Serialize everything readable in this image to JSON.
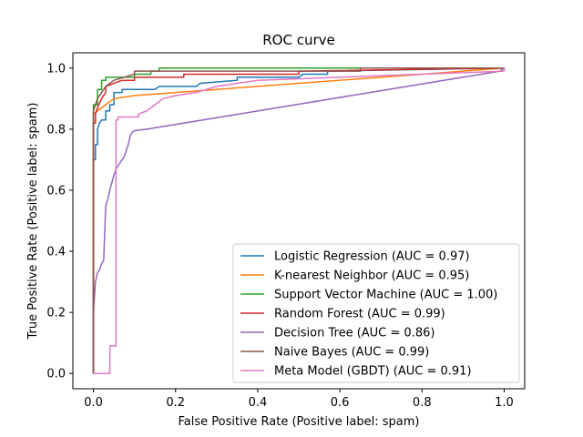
{
  "chart_data": {
    "type": "line",
    "title": "ROC curve",
    "xlabel": "False Positive Rate (Positive label: spam)",
    "ylabel": "True Positive Rate (Positive label: spam)",
    "xlim": [
      -0.05,
      1.05
    ],
    "ylim": [
      -0.05,
      1.05
    ],
    "xticks": [
      0.0,
      0.2,
      0.4,
      0.6,
      0.8,
      1.0
    ],
    "yticks": [
      0.0,
      0.2,
      0.4,
      0.6,
      0.8,
      1.0
    ],
    "tick_labels": [
      "0.0",
      "0.2",
      "0.4",
      "0.6",
      "0.8",
      "1.0"
    ],
    "grid": false,
    "legend_position": "lower-right",
    "series": [
      {
        "name": "Logistic Regression (AUC = 0.97)",
        "color": "#1f77b4",
        "x": [
          0.0,
          0.0,
          0.005,
          0.005,
          0.01,
          0.01,
          0.015,
          0.02,
          0.03,
          0.03,
          0.04,
          0.04,
          0.05,
          0.05,
          0.07,
          0.07,
          0.1,
          0.15,
          0.16,
          0.16,
          0.25,
          0.26,
          0.26,
          0.35,
          0.35,
          0.5,
          0.51,
          0.57,
          0.57,
          1.0
        ],
        "y": [
          0.0,
          0.7,
          0.7,
          0.75,
          0.75,
          0.8,
          0.82,
          0.83,
          0.83,
          0.86,
          0.86,
          0.88,
          0.88,
          0.92,
          0.92,
          0.93,
          0.93,
          0.93,
          0.94,
          0.94,
          0.94,
          0.95,
          0.95,
          0.96,
          0.97,
          0.97,
          0.98,
          0.98,
          0.99,
          1.0
        ]
      },
      {
        "name": "K-nearest Neighbor (AUC = 0.95)",
        "color": "#ff7f0e",
        "x": [
          0.0,
          0.0,
          0.01,
          0.02,
          0.03,
          0.05,
          0.1,
          1.0
        ],
        "y": [
          0.0,
          0.85,
          0.86,
          0.87,
          0.88,
          0.9,
          0.91,
          1.0
        ]
      },
      {
        "name": "Support Vector Machine (AUC = 1.00)",
        "color": "#2ca02c",
        "x": [
          0.0,
          0.0,
          0.01,
          0.01,
          0.02,
          0.02,
          0.03,
          0.03,
          0.05,
          0.05,
          0.1,
          0.1,
          0.14,
          0.14,
          0.16,
          0.16,
          0.66,
          1.0
        ],
        "y": [
          0.0,
          0.88,
          0.88,
          0.93,
          0.93,
          0.96,
          0.96,
          0.97,
          0.97,
          0.97,
          0.97,
          0.98,
          0.98,
          0.99,
          0.99,
          1.0,
          1.0,
          1.0
        ]
      },
      {
        "name": "Random Forest (AUC = 0.99)",
        "color": "#d62728",
        "x": [
          0.0,
          0.0,
          0.005,
          0.005,
          0.01,
          0.02,
          0.03,
          0.03,
          0.05,
          0.07,
          0.1,
          0.1,
          0.22,
          0.22,
          0.5,
          0.5,
          1.0
        ],
        "y": [
          0.0,
          0.82,
          0.82,
          0.85,
          0.87,
          0.9,
          0.92,
          0.94,
          0.95,
          0.96,
          0.96,
          0.97,
          0.97,
          0.98,
          0.98,
          0.99,
          1.0
        ]
      },
      {
        "name": "Decision Tree (AUC = 0.86)",
        "color": "#9467bd",
        "x": [
          0.0,
          0.0,
          0.005,
          0.01,
          0.015,
          0.02,
          0.025,
          0.03,
          0.035,
          0.04,
          0.05,
          0.055,
          0.06,
          0.075,
          0.08,
          0.085,
          0.09,
          0.095,
          0.1,
          0.13,
          0.99,
          1.0
        ],
        "y": [
          0.0,
          0.2,
          0.3,
          0.33,
          0.34,
          0.36,
          0.37,
          0.55,
          0.57,
          0.6,
          0.65,
          0.67,
          0.68,
          0.71,
          0.73,
          0.75,
          0.78,
          0.79,
          0.795,
          0.8,
          0.99,
          1.0
        ]
      },
      {
        "name": "Naive Bayes (AUC = 0.99)",
        "color": "#8c564b",
        "x": [
          0.0,
          0.0,
          0.01,
          0.02,
          0.03,
          0.05,
          0.1,
          0.1,
          0.65,
          0.65,
          1.0
        ],
        "y": [
          0.0,
          0.86,
          0.9,
          0.92,
          0.94,
          0.96,
          0.98,
          0.99,
          0.99,
          1.0,
          1.0
        ]
      },
      {
        "name": "Meta Model (GBDT) (AUC = 0.91)",
        "color": "#e377c2",
        "x": [
          0.0,
          0.0,
          0.04,
          0.04,
          0.055,
          0.055,
          0.06,
          0.06,
          0.11,
          0.11,
          0.13,
          0.14,
          0.15,
          0.16,
          0.17,
          0.2,
          0.25,
          0.3,
          0.35,
          0.4,
          1.0,
          1.0
        ],
        "y": [
          0.0,
          0.0,
          0.0,
          0.09,
          0.09,
          0.83,
          0.83,
          0.84,
          0.84,
          0.85,
          0.86,
          0.87,
          0.88,
          0.89,
          0.9,
          0.91,
          0.92,
          0.94,
          0.95,
          0.96,
          0.99,
          1.0
        ]
      }
    ]
  }
}
